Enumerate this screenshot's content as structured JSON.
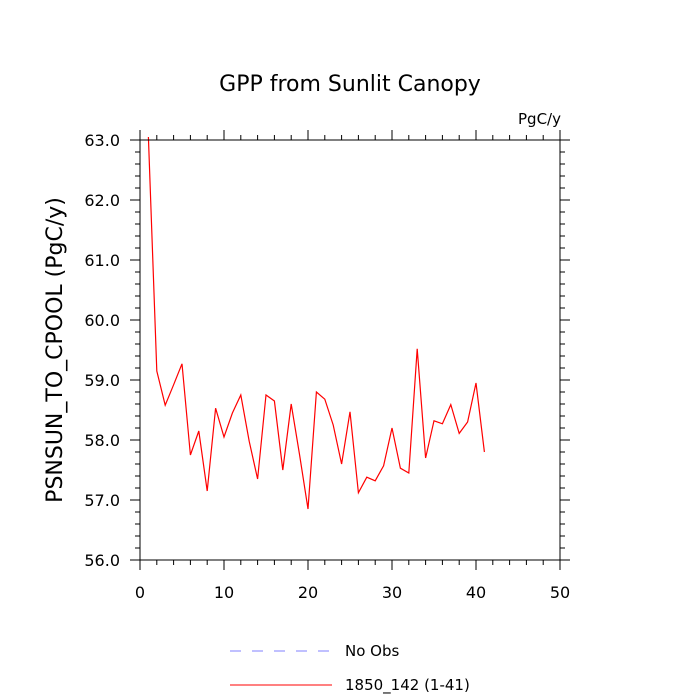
{
  "chart_data": {
    "type": "line",
    "title": "GPP from Sunlit Canopy",
    "units": "PgC/y",
    "xlabel": "",
    "ylabel": "PSNSUN_TO_CPOOL  (PgC/y)",
    "xlim": [
      0,
      50
    ],
    "ylim": [
      56.0,
      63.0
    ],
    "xticks": [
      0,
      10,
      20,
      30,
      40,
      50
    ],
    "yticks": [
      56.0,
      57.0,
      58.0,
      59.0,
      60.0,
      61.0,
      62.0,
      63.0
    ],
    "ytick_labels": [
      "56.0",
      "57.0",
      "58.0",
      "59.0",
      "60.0",
      "61.0",
      "62.0",
      "63.0"
    ],
    "grid": false,
    "legend_position": "bottom",
    "series": [
      {
        "name": "No Obs",
        "color": "#8080ff",
        "dash": "dashed",
        "x": [],
        "values": []
      },
      {
        "name": "1850_142 (1-41)",
        "color": "#ff0000",
        "dash": "solid",
        "x": [
          1,
          2,
          3,
          4,
          5,
          6,
          7,
          8,
          9,
          10,
          11,
          12,
          13,
          14,
          15,
          16,
          17,
          18,
          19,
          20,
          21,
          22,
          23,
          24,
          25,
          26,
          27,
          28,
          29,
          30,
          31,
          32,
          33,
          34,
          35,
          36,
          37,
          38,
          39,
          40,
          41
        ],
        "values": [
          63.05,
          59.15,
          58.58,
          58.92,
          59.27,
          57.75,
          58.15,
          57.15,
          58.53,
          58.05,
          58.45,
          58.75,
          57.98,
          57.35,
          58.75,
          58.65,
          57.5,
          58.6,
          57.75,
          56.85,
          58.8,
          58.68,
          58.25,
          57.6,
          58.47,
          57.12,
          57.38,
          57.32,
          57.57,
          58.2,
          57.53,
          57.45,
          59.52,
          57.7,
          58.32,
          58.27,
          58.59,
          58.11,
          58.3,
          58.95,
          57.8
        ]
      }
    ]
  }
}
